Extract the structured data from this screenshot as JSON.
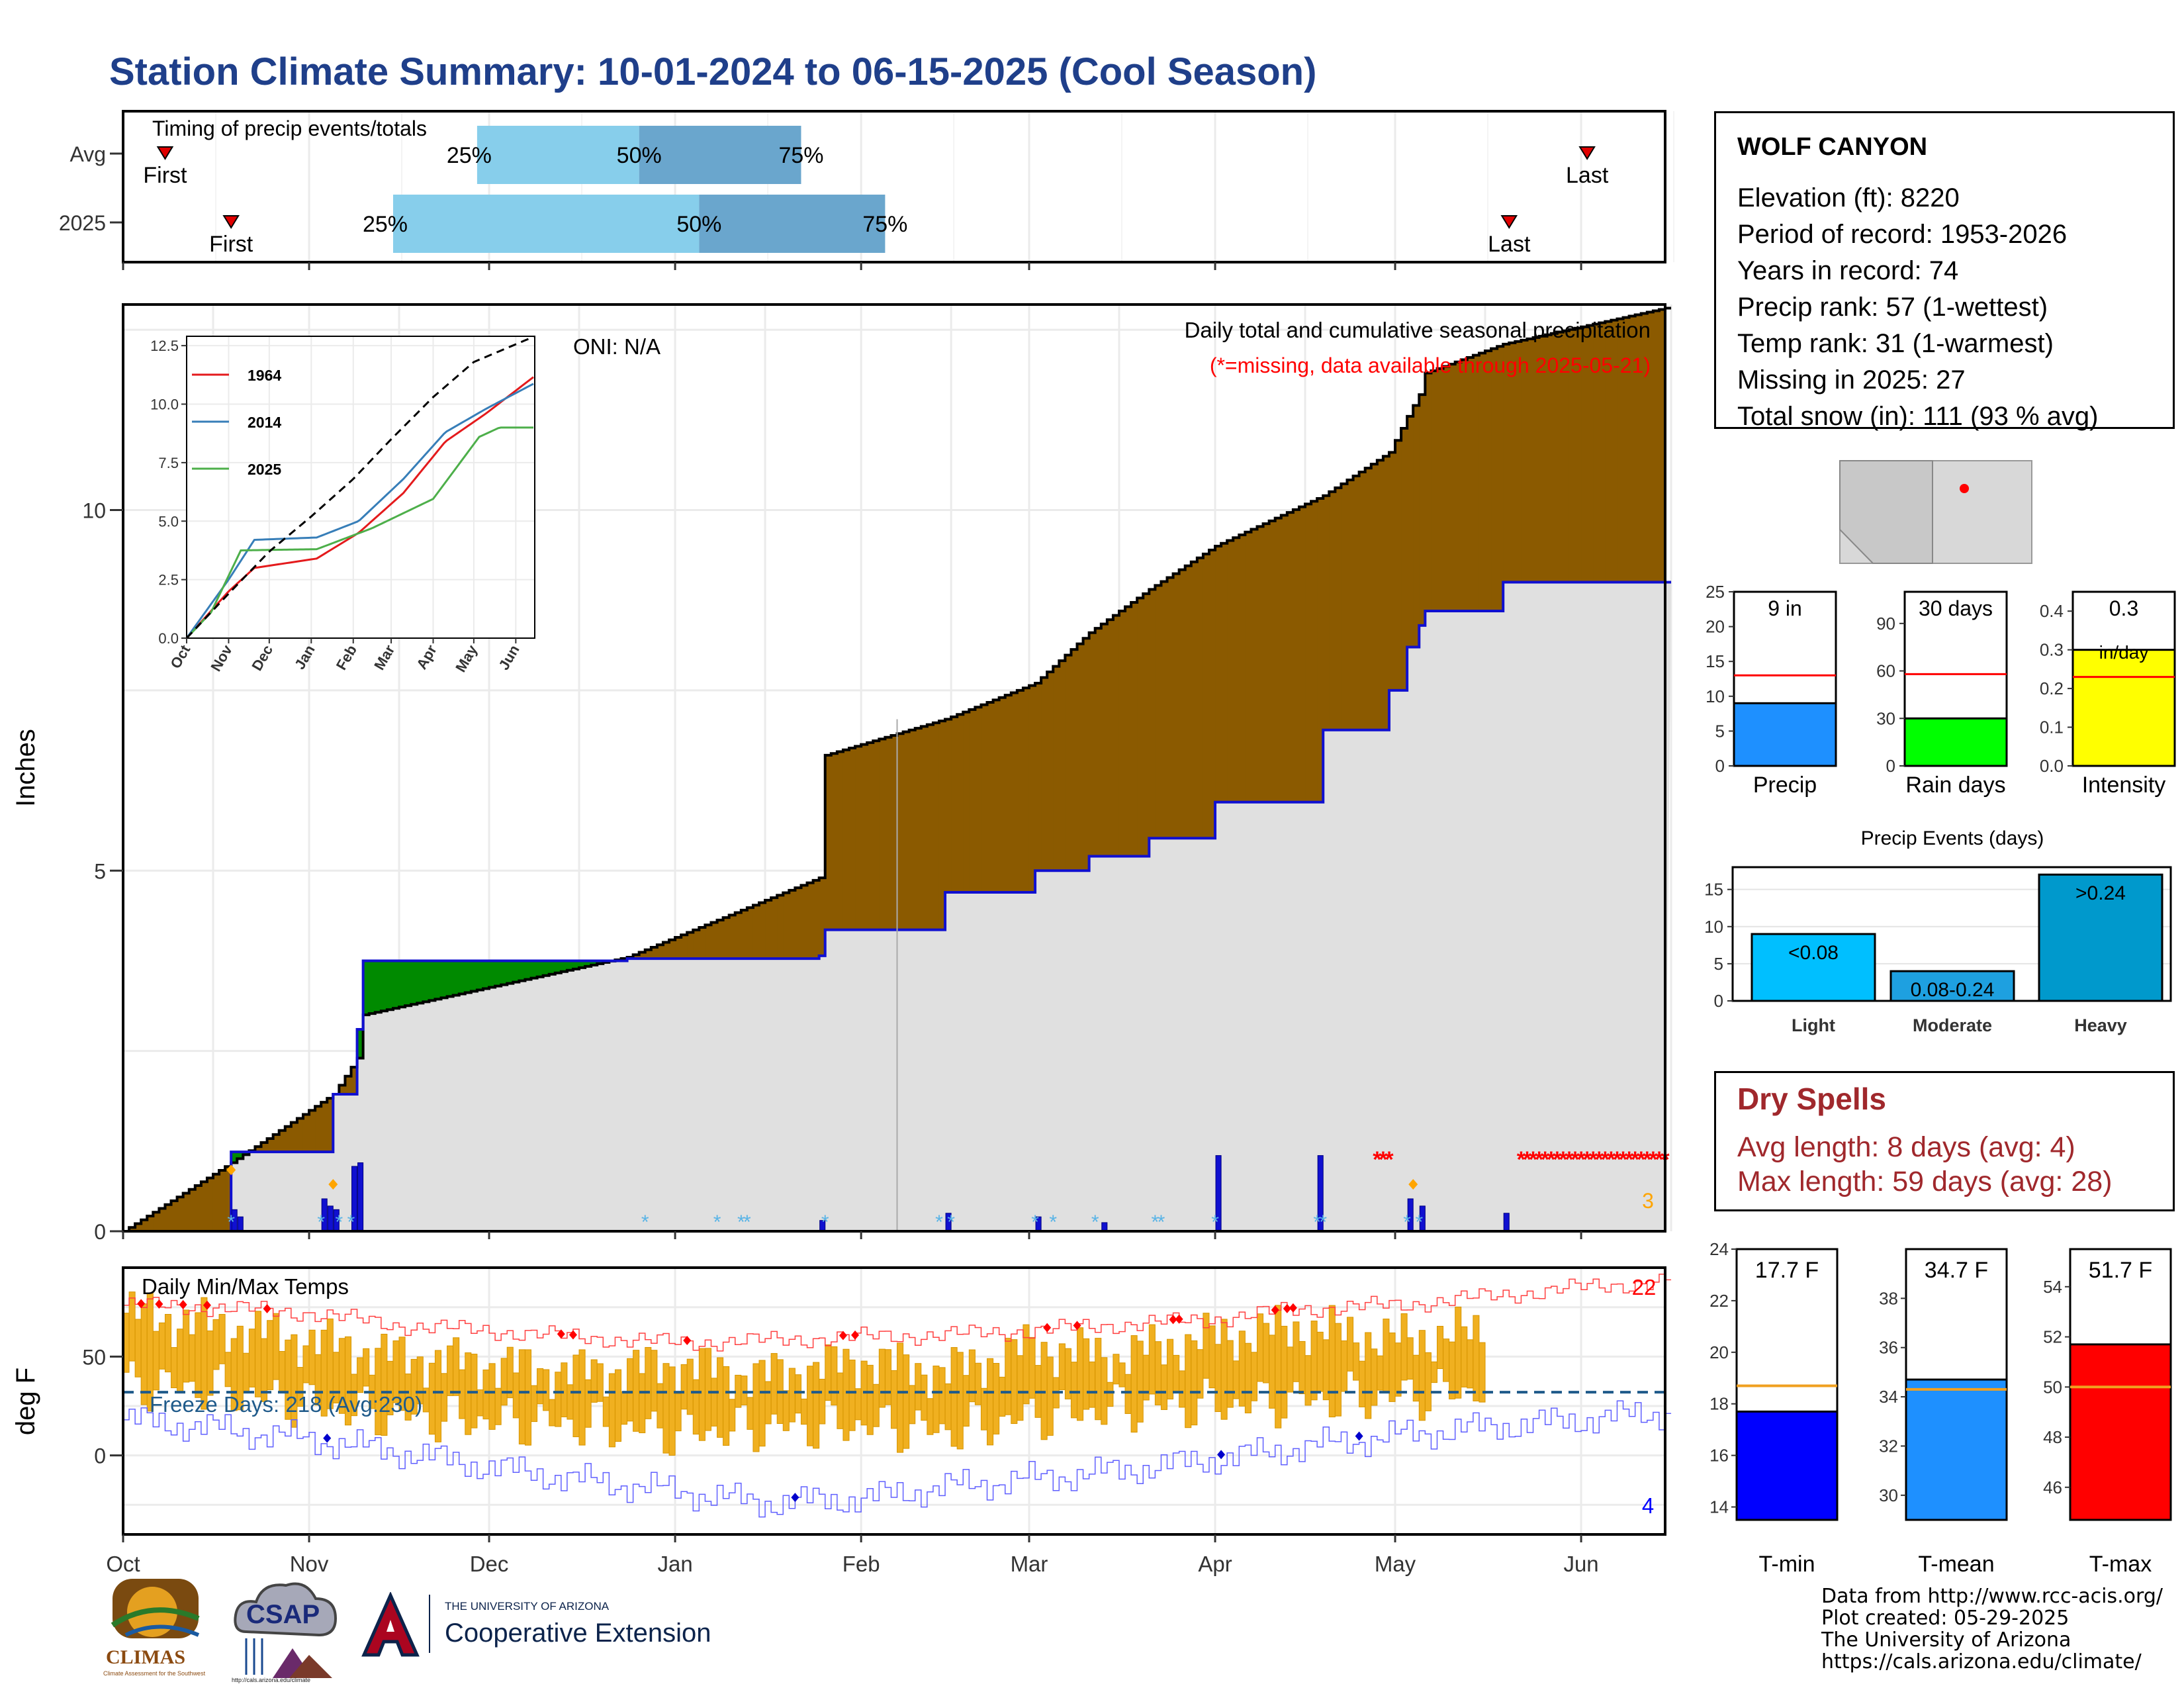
{
  "title": "Station Climate Summary: 10-01-2024 to 06-15-2025 (Cool Season)",
  "colors": {
    "title": "#1f3f8a",
    "brown": "#8b5a00",
    "green": "#008a00",
    "grey": "#e0e0e0",
    "blue_line": "#1010d0",
    "light_blue": "#87ceeb",
    "mid_blue": "#6aa6cd",
    "gold": "#f0b020",
    "dry_red": "#a0282c"
  },
  "timing": {
    "title": "Timing of precip events/totals",
    "rows": [
      {
        "label": "Avg",
        "first_date": "2024-10-08",
        "q25": "2024-11-29",
        "q50": "2024-12-26",
        "q75": "2025-01-22",
        "last_date": "2025-06-02",
        "first": "First",
        "last": "Last",
        "p25": "25%",
        "p50": "50%",
        "p75": "75%"
      },
      {
        "label": "2025",
        "first_date": "2024-10-19",
        "q25": "2024-11-15",
        "q50": "2025-01-05",
        "q75": "2025-02-05",
        "last_date": "2025-05-20",
        "first": "First",
        "last": "Last",
        "p25": "25%",
        "p50": "50%",
        "p75": "75%"
      }
    ]
  },
  "precip_panel": {
    "ylabel": "Inches",
    "yticks": [
      "0",
      "5",
      "10"
    ],
    "oni": "ONI: N/A",
    "title": "Daily total and cumulative seasonal precipitation",
    "missing_note": "(*=missing, data available through 2025-05-21)",
    "count_label": "3"
  },
  "inset": {
    "yticks": [
      "0.0",
      "2.5",
      "5.0",
      "7.5",
      "10.0",
      "12.5"
    ],
    "xticks": [
      "Oct",
      "Nov",
      "Dec",
      "Jan",
      "Feb",
      "Mar",
      "Apr",
      "May",
      "Jun"
    ],
    "legend": [
      "1964",
      "2014",
      "2025"
    ]
  },
  "temp_panel": {
    "ylabel": "deg F",
    "title": "Daily Min/Max Temps",
    "yticks": [
      "0",
      "50"
    ],
    "freeze": "Freeze Days: 218 (Avg:230)",
    "max_count": "22",
    "min_count": "4"
  },
  "months": [
    "Oct",
    "Nov",
    "Dec",
    "Jan",
    "Feb",
    "Mar",
    "Apr",
    "May",
    "Jun"
  ],
  "station": {
    "name": "WOLF CANYON",
    "lines": [
      "Elevation (ft): 8220",
      "Period of record: 1953-2026",
      "Years in record: 74",
      "Precip rank: 57 (1-wettest)",
      "Temp rank: 31 (1-warmest)",
      "Missing in 2025: 27",
      "Total snow (in): 111 (93 % avg)"
    ]
  },
  "mini_bars": [
    {
      "label": "Precip",
      "value_text": "9 in",
      "value": 9,
      "avg": 13,
      "ymax": 25,
      "ticks": [
        "0",
        "5",
        "10",
        "15",
        "20",
        "25"
      ],
      "color": "#1e90ff"
    },
    {
      "label": "Rain days",
      "value_text": "30 days",
      "value": 30,
      "avg": 58,
      "ymax": 110,
      "ticks": [
        "0",
        "30",
        "60",
        "90"
      ],
      "color": "#00ff00"
    },
    {
      "label": "Intensity",
      "value_text": "0.3",
      "value_text2": "in/day",
      "value": 0.3,
      "avg": 0.23,
      "ymax": 0.45,
      "ticks": [
        "0.0",
        "0.1",
        "0.2",
        "0.3",
        "0.4"
      ],
      "color": "#ffff00"
    }
  ],
  "events": {
    "title": "Precip Events (days)",
    "ticks": [
      "0",
      "5",
      "10",
      "15"
    ],
    "ymax": 18,
    "bars": [
      {
        "category": "Light",
        "label": "<0.08",
        "value": 9,
        "color": "#00bfff"
      },
      {
        "category": "Moderate",
        "label": "0.08-0.24",
        "value": 4,
        "color": "#1ea0e0"
      },
      {
        "category": "Heavy",
        "label": ">0.24",
        "value": 17,
        "color": "#0099cc"
      }
    ]
  },
  "dry_spells": {
    "title": "Dry Spells",
    "avg": "Avg length: 8 days (avg: 4)",
    "max": "Max length: 59 days (avg: 28)"
  },
  "temp_bars": [
    {
      "label": "T-min",
      "value_text": "17.7 F",
      "value": 17.7,
      "avg": 18.7,
      "ymin": 13.5,
      "ymax": 24,
      "ticks": [
        "14",
        "16",
        "18",
        "20",
        "22",
        "24"
      ],
      "color": "#0000ff"
    },
    {
      "label": "T-mean",
      "value_text": "34.7 F",
      "value": 34.7,
      "avg": 34.3,
      "ymin": 29,
      "ymax": 40,
      "ticks": [
        "30",
        "32",
        "34",
        "36",
        "38"
      ],
      "color": "#1e90ff"
    },
    {
      "label": "T-max",
      "value_text": "51.7 F",
      "value": 51.7,
      "avg": 50,
      "ymin": 44.7,
      "ymax": 55.5,
      "ticks": [
        "46",
        "48",
        "50",
        "52",
        "54"
      ],
      "color": "#ff0000"
    }
  ],
  "footer": [
    "Data from http://www.rcc-acis.org/",
    "Plot created: 05-29-2025",
    "The University of Arizona",
    "https://cals.arizona.edu/climate/"
  ],
  "logos": {
    "climas": "CLIMAS",
    "climas_sub": "Climate Assessment for the Southwest",
    "csap": "CSAP",
    "csap_url": "http://cals.arizona.edu/climate",
    "ua_small": "THE UNIVERSITY OF ARIZONA",
    "ua_big": "Cooperative Extension"
  },
  "chart_data": {
    "type": "area",
    "title": "Daily total and cumulative seasonal precipitation",
    "ylabel": "Inches",
    "ylim": [
      0,
      12.8
    ],
    "dates": [
      "2024-10-01",
      "2024-10-19",
      "2024-11-05",
      "2024-11-09",
      "2024-11-10",
      "2024-12-24",
      "2025-01-25",
      "2025-01-26",
      "2025-02-15",
      "2025-03-02",
      "2025-03-11",
      "2025-03-21",
      "2025-04-01",
      "2025-04-19",
      "2025-04-30",
      "2025-05-03",
      "2025-05-05",
      "2025-05-06",
      "2025-05-19",
      "2025-06-15"
    ],
    "cumulative_2025": [
      0.0,
      1.1,
      1.9,
      2.8,
      3.75,
      3.78,
      3.82,
      4.18,
      4.7,
      5.0,
      5.2,
      5.45,
      5.95,
      6.95,
      7.5,
      8.1,
      8.4,
      8.6,
      9.0,
      9.0
    ],
    "average_cumulative": [
      0.0,
      0.95,
      1.9,
      2.4,
      3.0,
      3.8,
      4.9,
      6.6,
      7.1,
      7.6,
      8.3,
      8.9,
      9.5,
      10.2,
      10.8,
      11.3,
      11.6,
      11.9,
      12.3,
      12.8
    ],
    "daily_precip": [
      [
        "2024-10-19",
        0.3
      ],
      [
        "2024-10-20",
        0.2
      ],
      [
        "2024-11-03",
        0.45
      ],
      [
        "2024-11-04",
        0.35
      ],
      [
        "2024-11-05",
        0.3
      ],
      [
        "2024-11-08",
        0.9
      ],
      [
        "2024-11-09",
        0.95
      ],
      [
        "2025-01-25",
        0.15
      ],
      [
        "2025-02-15",
        0.25
      ],
      [
        "2025-03-02",
        0.2
      ],
      [
        "2025-03-13",
        0.12
      ],
      [
        "2025-04-01",
        1.05
      ],
      [
        "2025-04-18",
        1.05
      ],
      [
        "2025-05-03",
        0.45
      ],
      [
        "2025-05-05",
        0.35
      ],
      [
        "2025-05-19",
        0.25
      ]
    ],
    "missing_periods": [
      [
        "2025-04-28",
        "2025-04-30"
      ],
      [
        "2025-05-22",
        "2025-06-15"
      ]
    ],
    "inset_series": [
      {
        "name": "1964",
        "dates": [
          "2024-10-01",
          "2024-11-01",
          "2024-11-20",
          "2025-01-05",
          "2025-02-05",
          "2025-03-10",
          "2025-04-10",
          "2025-05-10",
          "2025-06-15"
        ],
        "values": [
          0,
          2.0,
          3.0,
          3.4,
          4.5,
          6.2,
          8.4,
          9.6,
          11.2
        ]
      },
      {
        "name": "2014",
        "dates": [
          "2024-10-01",
          "2024-11-01",
          "2024-11-20",
          "2025-01-05",
          "2025-02-05",
          "2025-03-10",
          "2025-04-10",
          "2025-05-10",
          "2025-06-15"
        ],
        "values": [
          0,
          2.5,
          4.2,
          4.3,
          5.0,
          6.8,
          8.8,
          9.8,
          10.9
        ]
      },
      {
        "name": "2025",
        "dates": [
          "2024-10-01",
          "2024-10-19",
          "2024-11-10",
          "2025-01-05",
          "2025-02-15",
          "2025-04-01",
          "2025-05-05",
          "2025-05-20",
          "2025-06-15"
        ],
        "values": [
          0,
          1.1,
          3.75,
          3.8,
          4.7,
          5.95,
          8.6,
          9.0,
          9.0
        ]
      },
      {
        "name": "avg",
        "dates": [
          "2024-10-01",
          "2024-11-01",
          "2024-12-01",
          "2025-01-01",
          "2025-02-01",
          "2025-03-01",
          "2025-04-01",
          "2025-05-01",
          "2025-06-15"
        ],
        "values": [
          0,
          1.9,
          3.7,
          5.2,
          6.8,
          8.5,
          10.3,
          11.8,
          12.9
        ]
      }
    ],
    "temperature": {
      "title": "Daily Min/Max Temps",
      "ylabel": "deg F",
      "ylim": [
        -40,
        95
      ],
      "freeze_line": 32,
      "dates": [
        "2024-10-01",
        "2024-10-15",
        "2024-11-01",
        "2024-11-15",
        "2024-12-01",
        "2024-12-15",
        "2025-01-01",
        "2025-01-15",
        "2025-02-01",
        "2025-02-15",
        "2025-03-01",
        "2025-03-15",
        "2025-04-01",
        "2025-04-15",
        "2025-05-01",
        "2025-05-15",
        "2025-06-01",
        "2025-06-15"
      ],
      "record_high": [
        76,
        75,
        72,
        66,
        63,
        60,
        57,
        58,
        60,
        61,
        63,
        66,
        69,
        74,
        76,
        80,
        85,
        88
      ],
      "record_low": [
        18,
        14,
        8,
        2,
        -6,
        -12,
        -18,
        -24,
        -22,
        -16,
        -12,
        -8,
        -2,
        4,
        10,
        14,
        18,
        22
      ],
      "observed_max": [
        72,
        66,
        58,
        50,
        46,
        42,
        46,
        40,
        48,
        42,
        55,
        50,
        60,
        64,
        58,
        62
      ],
      "observed_min": [
        36,
        34,
        26,
        20,
        18,
        16,
        12,
        14,
        16,
        12,
        20,
        24,
        26,
        28,
        30,
        34
      ]
    }
  }
}
